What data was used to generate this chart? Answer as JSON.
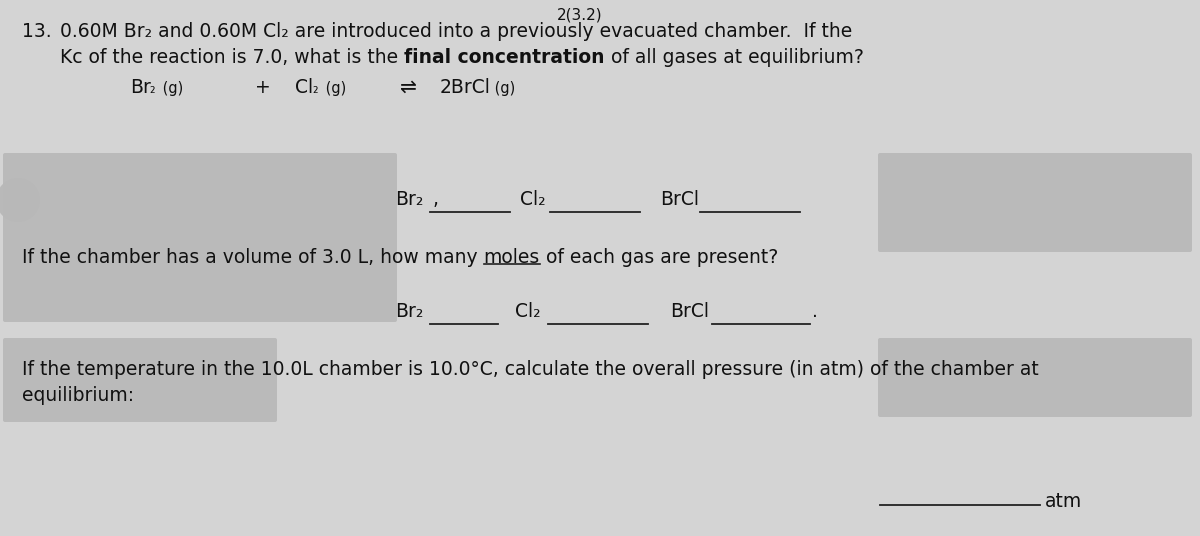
{
  "background_color": "#d4d4d4",
  "text_color": "#111111",
  "top_text": "2(3.2)",
  "line1_num": "13.",
  "line1_rest": "0.60M Br₂ and 0.60M Cl₂ are introduced into a previously evacuated chamber.  If the",
  "line2_pre": "Kc of the reaction is 7.0, what is the ",
  "line2_bold": "final concentration",
  "line2_post": " of all gases at equilibrium?",
  "eq_br2": "Br₂",
  "eq_cl2": "Cl₂",
  "eq_arrow": "⇌",
  "eq_brcl": "2BrCl",
  "eq_g": "(g)",
  "eq_plus": "+",
  "ans1_br2": "Br₂",
  "ans1_cl2": "Cl₂",
  "ans1_brcl": "BrCl",
  "moles_pre": "If the chamber has a volume of 3.0 L, how many ",
  "moles_word": "moles",
  "moles_post": " of each gas are present?",
  "ans2_br2": "Br₂",
  "ans2_cl2": "Cl₂",
  "ans2_brcl": "BrCl",
  "press_line1": "If the temperature in the 10.0L chamber is 10.0°C, calculate the overall pressure (in atm) of the chamber at",
  "press_line2": "equilibrium:",
  "atm_label": "atm",
  "blurred_color": "#b8b8b8",
  "line_color": "#222222",
  "fs": 13.5,
  "fs_sub": 10.0,
  "fs_eq": 11.5
}
